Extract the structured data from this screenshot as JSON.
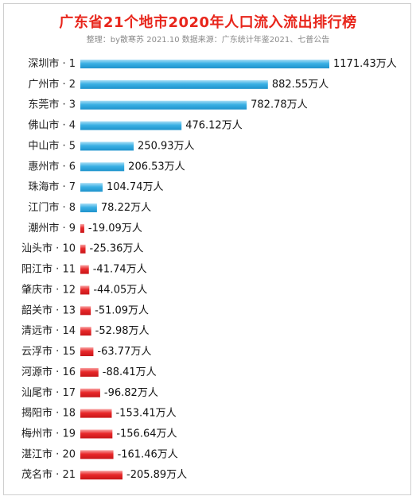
{
  "title": "广东省21个地市2020年人口流入流出排行榜",
  "subtitle": "整理：by散寒苏 2021.10 数据来源：广东统计年鉴2021、七普公告",
  "colors": {
    "positive": "#3ab0e4",
    "negative": "#e8282a",
    "title": "#e8261c"
  },
  "chart_data": {
    "type": "bar",
    "orientation": "horizontal",
    "categories": [
      "深圳市 · 1",
      "广州市 · 2",
      "东莞市 · 3",
      "佛山市 · 4",
      "中山市 · 5",
      "惠州市 · 6",
      "珠海市 · 7",
      "江门市 · 8",
      "潮州市 · 9",
      "汕头市 · 10",
      "阳江市 · 11",
      "肇庆市 · 12",
      "韶关市 · 13",
      "清远市 · 14",
      "云浮市 · 15",
      "河源市 · 16",
      "汕尾市 · 17",
      "揭阳市 · 18",
      "梅州市 · 19",
      "湛江市 · 20",
      "茂名市 · 21"
    ],
    "values": [
      1171.43,
      882.55,
      782.78,
      476.12,
      250.93,
      206.53,
      104.74,
      78.22,
      -19.09,
      -25.36,
      -41.74,
      -44.05,
      -51.09,
      -52.98,
      -63.77,
      -88.41,
      -96.82,
      -153.41,
      -156.64,
      -161.46,
      -205.89
    ],
    "labels": [
      "1171.43万人",
      "882.55万人",
      "782.78万人",
      "476.12万人",
      "250.93万人",
      "206.53万人",
      "104.74万人",
      "78.22万人",
      "-19.09万人",
      "-25.36万人",
      "-41.74万人",
      "-44.05万人",
      "-51.09万人",
      "-52.98万人",
      "-63.77万人",
      "-88.41万人",
      "-96.82万人",
      "-153.41万人",
      "-156.64万人",
      "-161.46万人",
      "-205.89万人"
    ],
    "unit": "万人",
    "grid": false,
    "legend": "none"
  }
}
